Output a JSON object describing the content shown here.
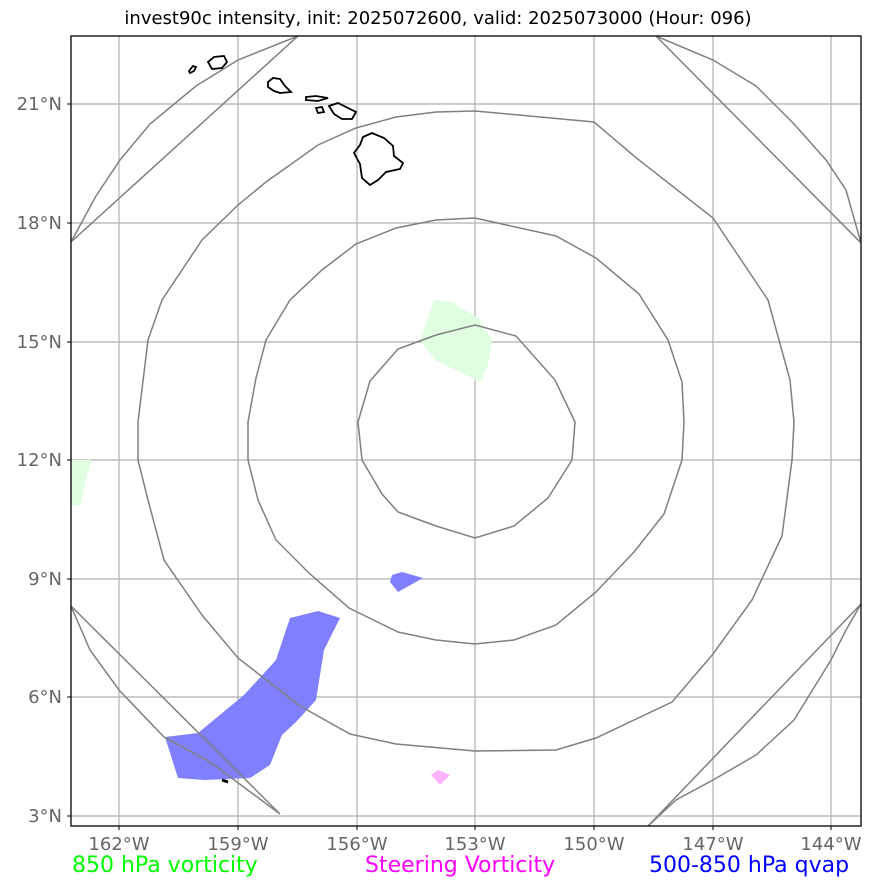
{
  "title": "invest90c intensity, init: 2025072600, valid: 2025073000 (Hour: 096)",
  "map": {
    "lon_labels": [
      "162°W",
      "159°W",
      "156°W",
      "153°W",
      "150°W",
      "147°W",
      "144°W"
    ],
    "lat_labels": [
      "21°N",
      "18°N",
      "15°N",
      "12°N",
      "9°N",
      "6°N",
      "3°N"
    ],
    "center": {
      "lon": -153,
      "lat": 13
    },
    "range_rings": 4,
    "colors": {
      "grid": "#b0b0b0",
      "rings": "#808080",
      "coast": "#000000",
      "vorticity_850": "#e0ffe0",
      "steering_vorticity": "#ffb3ff",
      "qvap": "#8080ff"
    }
  },
  "legend": {
    "green": "850 hPa vorticity",
    "magenta": "Steering Vorticity",
    "blue": "500-850 hPa qvap"
  }
}
